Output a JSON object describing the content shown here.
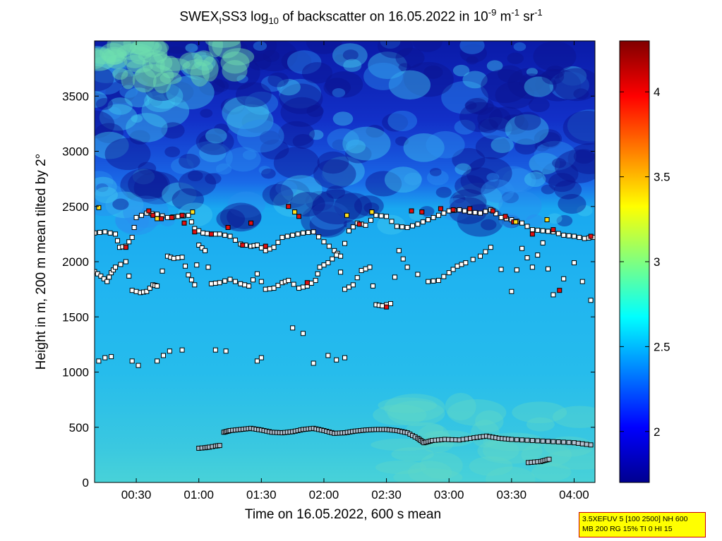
{
  "chart_data": {
    "type": "heatmap",
    "title": {
      "prefix": "SWEX",
      "sub1": "I",
      "mid": "SS3 log",
      "sub2": "10",
      "suffix": " of backscatter on 16.05.2022 in 10",
      "sup1": "-9",
      "unit1": " m",
      "sup2": "-1",
      "unit2": " sr",
      "sup3": "-1"
    },
    "xlabel": "Time on 16.05.2022, 600 s mean",
    "ylabel": "Height in m, 200 m mean tilted by 2°",
    "xlim_minutes": [
      10,
      250
    ],
    "ylim": [
      0,
      4000
    ],
    "x_ticks": [
      {
        "minutes": 30,
        "label": "00:30"
      },
      {
        "minutes": 60,
        "label": "01:00"
      },
      {
        "minutes": 90,
        "label": "01:30"
      },
      {
        "minutes": 120,
        "label": "02:00"
      },
      {
        "minutes": 150,
        "label": "02:30"
      },
      {
        "minutes": 180,
        "label": "03:00"
      },
      {
        "minutes": 210,
        "label": "03:30"
      },
      {
        "minutes": 240,
        "label": "04:00"
      }
    ],
    "y_ticks": [
      0,
      500,
      1000,
      1500,
      2000,
      2500,
      3000,
      3500
    ],
    "colorbar": {
      "range": [
        1.7,
        4.3
      ],
      "ticks": [
        2,
        2.5,
        3,
        3.5,
        4
      ],
      "colormap": "jet"
    },
    "layers": {
      "low_lead": [
        [
          60,
          310
        ],
        [
          63,
          315
        ],
        [
          65,
          320
        ],
        [
          68,
          330
        ],
        [
          70,
          335
        ]
      ],
      "low_main": [
        [
          72,
          455
        ],
        [
          75,
          470
        ],
        [
          80,
          480
        ],
        [
          85,
          490
        ],
        [
          90,
          475
        ],
        [
          95,
          455
        ],
        [
          100,
          450
        ],
        [
          105,
          460
        ],
        [
          110,
          480
        ],
        [
          115,
          490
        ],
        [
          120,
          470
        ],
        [
          125,
          445
        ],
        [
          130,
          450
        ],
        [
          135,
          465
        ],
        [
          140,
          475
        ],
        [
          145,
          480
        ],
        [
          150,
          480
        ],
        [
          155,
          470
        ],
        [
          160,
          450
        ],
        [
          165,
          400
        ],
        [
          168,
          360
        ],
        [
          172,
          380
        ],
        [
          178,
          390
        ],
        [
          185,
          385
        ],
        [
          192,
          405
        ],
        [
          198,
          420
        ],
        [
          204,
          400
        ],
        [
          210,
          390
        ],
        [
          220,
          380
        ],
        [
          230,
          370
        ],
        [
          240,
          360
        ],
        [
          248,
          340
        ]
      ],
      "low_patch": [
        [
          218,
          180
        ],
        [
          221,
          185
        ],
        [
          224,
          190
        ],
        [
          226,
          200
        ],
        [
          228,
          210
        ]
      ],
      "mid_upper": [
        [
          10,
          2260
        ],
        [
          15,
          2270
        ],
        [
          20,
          2250
        ],
        [
          22,
          2130
        ],
        [
          25,
          2140
        ],
        [
          28,
          2220
        ],
        [
          30,
          2400
        ],
        [
          35,
          2440
        ],
        [
          40,
          2430
        ],
        [
          45,
          2400
        ],
        [
          50,
          2410
        ],
        [
          55,
          2420
        ],
        [
          58,
          2300
        ],
        [
          62,
          2260
        ],
        [
          66,
          2250
        ],
        [
          70,
          2250
        ],
        [
          75,
          2230
        ],
        [
          80,
          2160
        ],
        [
          85,
          2140
        ],
        [
          88,
          2150
        ],
        [
          92,
          2100
        ],
        [
          96,
          2130
        ],
        [
          100,
          2220
        ],
        [
          105,
          2240
        ],
        [
          110,
          2260
        ],
        [
          115,
          2270
        ],
        [
          120,
          2180
        ],
        [
          125,
          2100
        ],
        [
          128,
          2050
        ],
        [
          132,
          2280
        ],
        [
          136,
          2350
        ],
        [
          140,
          2330
        ],
        [
          145,
          2420
        ],
        [
          150,
          2410
        ],
        [
          155,
          2320
        ],
        [
          160,
          2310
        ],
        [
          165,
          2340
        ],
        [
          170,
          2380
        ],
        [
          175,
          2420
        ],
        [
          180,
          2460
        ],
        [
          185,
          2470
        ],
        [
          190,
          2450
        ],
        [
          195,
          2440
        ],
        [
          200,
          2470
        ],
        [
          205,
          2400
        ],
        [
          210,
          2380
        ],
        [
          215,
          2350
        ],
        [
          220,
          2290
        ],
        [
          225,
          2280
        ],
        [
          230,
          2270
        ],
        [
          235,
          2240
        ],
        [
          240,
          2230
        ],
        [
          245,
          2210
        ],
        [
          249,
          2220
        ]
      ],
      "mid_lower": [
        [
          10,
          1910
        ],
        [
          13,
          1870
        ],
        [
          16,
          1820
        ],
        [
          18,
          1900
        ],
        [
          20,
          1950
        ],
        [
          25,
          2000
        ],
        [
          28,
          1740
        ],
        [
          32,
          1720
        ],
        [
          35,
          1730
        ],
        [
          38,
          1790
        ],
        [
          40,
          1780
        ],
        [
          45,
          2050
        ],
        [
          48,
          2030
        ],
        [
          52,
          2040
        ],
        [
          55,
          1880
        ],
        [
          58,
          1790
        ],
        [
          60,
          2150
        ],
        [
          63,
          2100
        ],
        [
          66,
          1800
        ],
        [
          70,
          1810
        ],
        [
          75,
          1840
        ],
        [
          80,
          1800
        ],
        [
          84,
          1780
        ],
        [
          88,
          1890
        ],
        [
          92,
          1750
        ],
        [
          96,
          1760
        ],
        [
          100,
          1810
        ],
        [
          103,
          1830
        ],
        [
          108,
          1760
        ],
        [
          112,
          1780
        ],
        [
          116,
          1830
        ],
        [
          118,
          1950
        ],
        [
          122,
          1990
        ],
        [
          126,
          2060
        ],
        [
          130,
          1750
        ],
        [
          134,
          1790
        ],
        [
          138,
          1920
        ],
        [
          142,
          1950
        ],
        [
          145,
          1610
        ],
        [
          148,
          1600
        ],
        [
          152,
          1620
        ],
        [
          156,
          2100
        ],
        [
          160,
          1950
        ],
        [
          170,
          1820
        ],
        [
          175,
          1830
        ],
        [
          180,
          1900
        ],
        [
          184,
          1960
        ],
        [
          188,
          1990
        ],
        [
          195,
          2050
        ],
        [
          200,
          2130
        ],
        [
          210,
          1730
        ],
        [
          215,
          2120
        ],
        [
          220,
          1950
        ],
        [
          225,
          2170
        ],
        [
          230,
          1700
        ],
        [
          240,
          1990
        ],
        [
          248,
          1650
        ]
      ],
      "scatter_1100": [
        [
          12,
          1100
        ],
        [
          15,
          1130
        ],
        [
          18,
          1140
        ],
        [
          28,
          1100
        ],
        [
          31,
          1060
        ],
        [
          40,
          1100
        ],
        [
          43,
          1150
        ],
        [
          46,
          1190
        ],
        [
          52,
          1200
        ],
        [
          68,
          1200
        ],
        [
          73,
          1190
        ],
        [
          88,
          1100
        ],
        [
          90,
          1130
        ],
        [
          115,
          1080
        ],
        [
          122,
          1150
        ],
        [
          126,
          1110
        ],
        [
          130,
          1130
        ],
        [
          105,
          1400
        ],
        [
          110,
          1350
        ]
      ],
      "strong": [
        [
          25,
          2130
        ],
        [
          36,
          2460
        ],
        [
          38,
          2420
        ],
        [
          42,
          2390
        ],
        [
          47,
          2400
        ],
        [
          52,
          2420
        ],
        [
          53,
          2350
        ],
        [
          58,
          2270
        ],
        [
          66,
          2250
        ],
        [
          74,
          2310
        ],
        [
          81,
          2150
        ],
        [
          85,
          2350
        ],
        [
          92,
          2140
        ],
        [
          103,
          2500
        ],
        [
          108,
          2410
        ],
        [
          112,
          1810
        ],
        [
          137,
          2340
        ],
        [
          150,
          1590
        ],
        [
          162,
          2460
        ],
        [
          167,
          2450
        ],
        [
          176,
          2480
        ],
        [
          182,
          2470
        ],
        [
          190,
          2480
        ],
        [
          201,
          2460
        ],
        [
          207,
          2410
        ],
        [
          211,
          2360
        ],
        [
          220,
          2250
        ],
        [
          230,
          2290
        ],
        [
          233,
          1740
        ],
        [
          248,
          2230
        ]
      ],
      "yellow": [
        [
          12,
          2490
        ],
        [
          40,
          2390
        ],
        [
          57,
          2450
        ],
        [
          106,
          2450
        ],
        [
          131,
          2420
        ],
        [
          143,
          2450
        ],
        [
          212,
          2360
        ],
        [
          227,
          2380
        ]
      ]
    }
  },
  "info_box": {
    "line1": "3.5XEFUV 5 [100 2500] NH 600",
    "line2": "MB 200 RG 15% TI 0 HI 15"
  }
}
